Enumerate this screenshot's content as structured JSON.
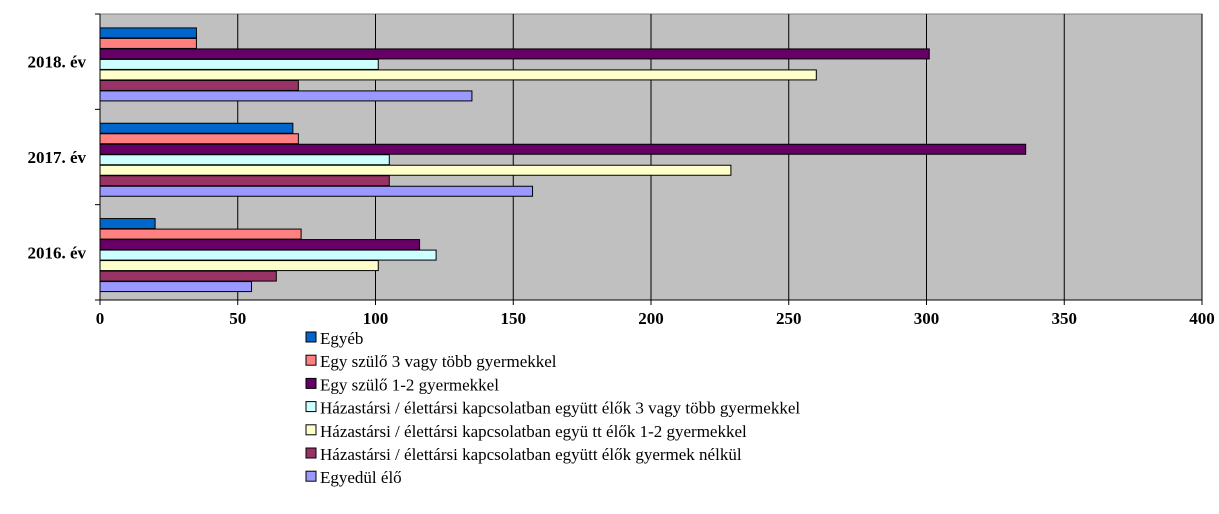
{
  "chart_data": {
    "type": "bar",
    "orientation": "horizontal",
    "categories": [
      "2016. év",
      "2017. év",
      "2018. év"
    ],
    "x_ticks": [
      0,
      50,
      100,
      150,
      200,
      250,
      300,
      350,
      400
    ],
    "xlim": [
      0,
      400
    ],
    "grid": true,
    "legend_position": "bottom",
    "series": [
      {
        "name": "Egyéb",
        "color": "#0066CC",
        "values": [
          20,
          70,
          35
        ]
      },
      {
        "name": "Egy szülő 3 vagy több gyermekkel",
        "color": "#FF8080",
        "values": [
          73,
          72,
          35
        ]
      },
      {
        "name": "Egy szülő 1-2 gyermekkel",
        "color": "#660066",
        "values": [
          116,
          336,
          301
        ]
      },
      {
        "name": "Házastársi / élettársi kapcsolatban együtt élők 3 vagy több gyermekkel",
        "color": "#CCFFFF",
        "values": [
          122,
          105,
          101
        ]
      },
      {
        "name": "Házastársi / élettársi kapcsolatban együ tt élők 1-2 gyermekkel",
        "color": "#FFFFCC",
        "values": [
          101,
          229,
          260
        ]
      },
      {
        "name": "Házastársi / élettársi kapcsolatban együtt élők gyermek nélkül",
        "color": "#993366",
        "values": [
          64,
          105,
          72
        ]
      },
      {
        "name": "Egyedül élő",
        "color": "#9999FF",
        "values": [
          55,
          157,
          135
        ]
      }
    ]
  }
}
